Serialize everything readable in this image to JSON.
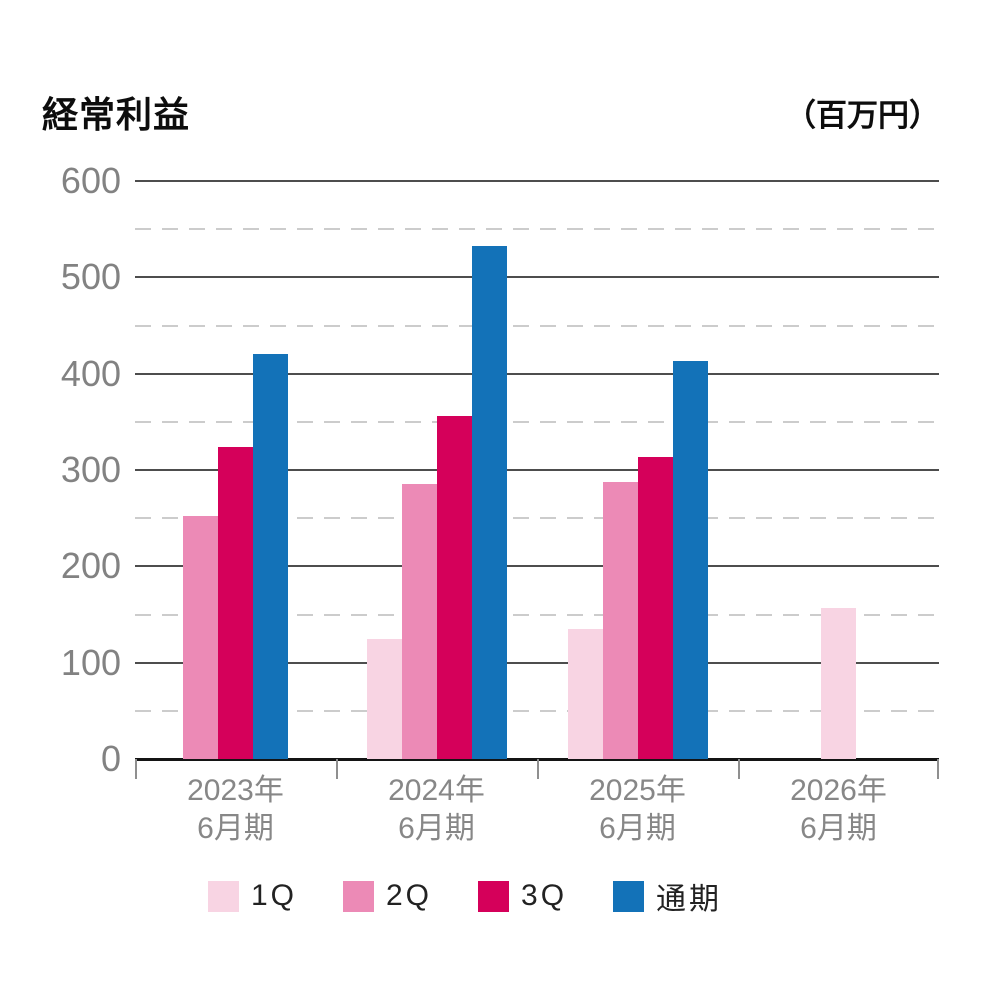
{
  "header": {
    "title": "経常利益",
    "unit": "（百万円）"
  },
  "chart_data": {
    "type": "bar",
    "title": "経常利益",
    "unit_label": "（百万円）",
    "categories": [
      {
        "key": "2023",
        "line1": "2023年",
        "line2": "6月期"
      },
      {
        "key": "2024",
        "line1": "2024年",
        "line2": "6月期"
      },
      {
        "key": "2025",
        "line1": "2025年",
        "line2": "6月期"
      },
      {
        "key": "2026",
        "line1": "2026年",
        "line2": "6月期"
      }
    ],
    "series": [
      {
        "key": "1q",
        "name": "1Q",
        "color": "#f8d4e3",
        "values": [
          null,
          125,
          135,
          157
        ]
      },
      {
        "key": "2q",
        "name": "2Q",
        "color": "#ec8ab6",
        "values": [
          252,
          285,
          288,
          null
        ]
      },
      {
        "key": "3q",
        "name": "3Q",
        "color": "#d5005a",
        "values": [
          324,
          356,
          314,
          null
        ]
      },
      {
        "key": "fy",
        "name": "通期",
        "color": "#1372b8",
        "values": [
          420,
          533,
          413,
          null
        ]
      }
    ],
    "ylim": [
      0,
      600
    ],
    "yticks": [
      0,
      100,
      200,
      300,
      400,
      500,
      600
    ],
    "minor_step": 50,
    "grid": {
      "major": "solid",
      "minor": "dashed"
    },
    "legend_position": "bottom",
    "axis_color": "#141414",
    "major_grid_color": "#4d4d4d",
    "minor_grid_color": "#cccccc",
    "tick_label_color": "#828282"
  }
}
